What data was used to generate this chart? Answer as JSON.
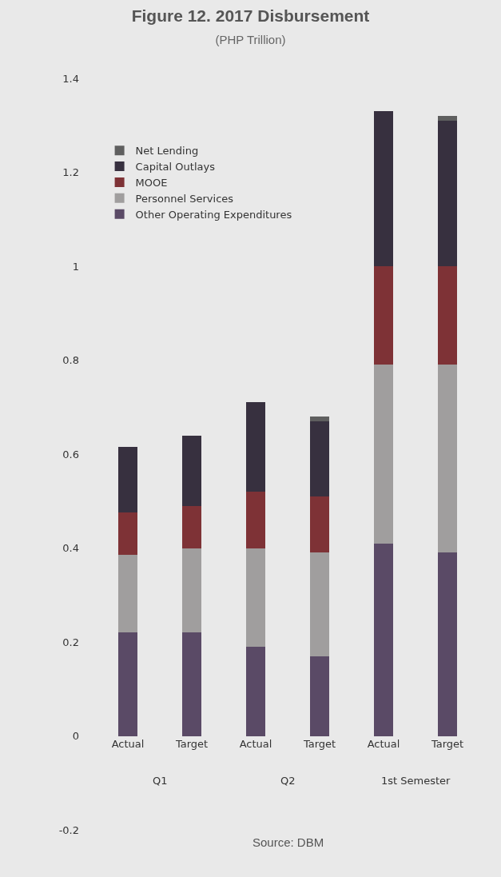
{
  "chart_data": {
    "type": "bar",
    "title": "Figure 12. 2017 Disbursement",
    "subtitle": "(PHP Trillion)",
    "categories": [
      "Actual",
      "Target",
      "Actual",
      "Target",
      "Actual",
      "Target"
    ],
    "stacked": true,
    "series": [
      {
        "name": "Other Operating Expenditures",
        "color": "#5a4a66",
        "values": [
          0.22,
          0.22,
          0.19,
          0.17,
          0.41,
          0.39
        ]
      },
      {
        "name": "Personnel Services",
        "color": "#a09e9e",
        "values": [
          0.165,
          0.18,
          0.21,
          0.22,
          0.38,
          0.4
        ]
      },
      {
        "name": "MOOE",
        "color": "#7e3236",
        "values": [
          0.09,
          0.09,
          0.12,
          0.12,
          0.21,
          0.21
        ]
      },
      {
        "name": "Capital Outlays",
        "color": "#37303f",
        "values": [
          0.14,
          0.15,
          0.19,
          0.16,
          0.33,
          0.31
        ]
      },
      {
        "name": "Net Lending",
        "color": "#5f5f5f",
        "values": [
          0,
          0,
          0,
          0.01,
          0,
          0.01
        ]
      }
    ],
    "ylim": [
      -0.2,
      1.4
    ],
    "yticks": [
      -0.2,
      0,
      0.2,
      0.4,
      0.6,
      0.8,
      1,
      1.2,
      1.4
    ],
    "grid": false,
    "legend": "top left",
    "annotations": [
      "Q1",
      "Q2",
      "1st Semester",
      "Source: DBM"
    ]
  }
}
